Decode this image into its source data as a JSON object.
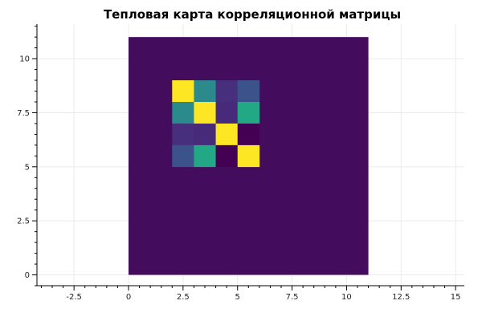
{
  "chart_data": {
    "type": "heatmap",
    "title": "Тепловая карта корреляционной матрицы",
    "xlabel": "",
    "ylabel": "",
    "xlim": [
      -4.2,
      15.4
    ],
    "ylim": [
      -0.5,
      11.6
    ],
    "grid": true,
    "x_ticks": [
      -2.5,
      0,
      2.5,
      5,
      7.5,
      10,
      12.5,
      15
    ],
    "x_tick_labels": [
      "-2.5",
      "0",
      "2.5",
      "5",
      "7.5",
      "10",
      "12.5",
      "15"
    ],
    "y_ticks": [
      0,
      2.5,
      5,
      7.5,
      10
    ],
    "y_tick_labels": [
      "0",
      "2.5",
      "5",
      "7.5",
      "10"
    ],
    "background_rect": {
      "x0": 0,
      "x1": 11,
      "y0": 0,
      "y1": 11,
      "color": "#440c5c"
    },
    "cell_origin": [
      2,
      5
    ],
    "cell_size": 1,
    "matrix": [
      [
        1.0,
        0.45,
        0.1,
        0.25
      ],
      [
        0.45,
        1.0,
        0.1,
        0.6
      ],
      [
        0.1,
        0.1,
        1.0,
        0.0
      ],
      [
        0.25,
        0.6,
        0.0,
        1.0
      ]
    ],
    "colors": [
      [
        "#fde725",
        "#2a8a8c",
        "#472f7d",
        "#3b528b"
      ],
      [
        "#2a8a8c",
        "#fde725",
        "#472b7a",
        "#22a884"
      ],
      [
        "#472f7d",
        "#472b7a",
        "#fde725",
        "#440154"
      ],
      [
        "#3b528b",
        "#22a884",
        "#440154",
        "#fde725"
      ]
    ]
  }
}
